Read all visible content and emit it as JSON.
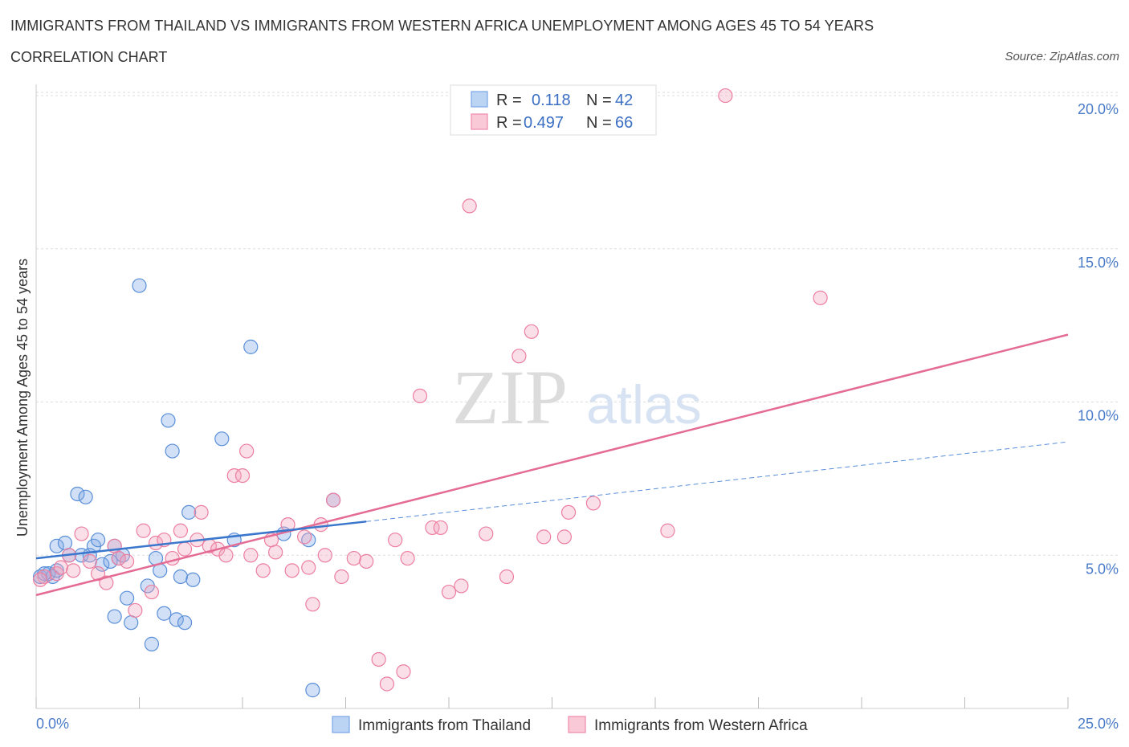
{
  "header": {
    "title": "IMMIGRANTS FROM THAILAND VS IMMIGRANTS FROM WESTERN AFRICA UNEMPLOYMENT AMONG AGES 45 TO 54 YEARS",
    "subtitle": "CORRELATION CHART",
    "source": "Source: ZipAtlas.com"
  },
  "watermark": {
    "zip": "ZIP",
    "atlas": "atlas"
  },
  "legend_top": {
    "rows": [
      {
        "r_label": "R =",
        "r_value": "0.118",
        "n_label": "N =",
        "n_value": "42",
        "color": "#7aa7e6"
      },
      {
        "r_label": "R =",
        "r_value": "0.497",
        "n_label": "N =",
        "n_value": "66",
        "color": "#f08aaa"
      }
    ]
  },
  "chart_data": {
    "type": "scatter",
    "title": "IMMIGRANTS FROM THAILAND VS IMMIGRANTS FROM WESTERN AFRICA UNEMPLOYMENT AMONG AGES 45 TO 54 YEARS",
    "subtitle": "CORRELATION CHART",
    "xlabel": "",
    "ylabel": "Unemployment Among Ages 45 to 54 years",
    "xlim": [
      0,
      25
    ],
    "ylim": [
      0,
      20.5
    ],
    "x_tick_labels": [
      "0.0%",
      "25.0%"
    ],
    "y_tick_labels": [
      "5.0%",
      "10.0%",
      "15.0%",
      "20.0%"
    ],
    "y_ticks": [
      5,
      10,
      15,
      20
    ],
    "grid": true,
    "legend_position": "top-center",
    "series": [
      {
        "name": "Immigrants from Thailand",
        "color": "#7aa7e6",
        "stroke": "#5a8fd8",
        "trend": {
          "x": [
            0,
            8
          ],
          "y": [
            4.9,
            6.1
          ],
          "extended_x": [
            8,
            25
          ],
          "extended_y": [
            6.1,
            8.7
          ]
        },
        "points": [
          [
            0.1,
            4.3
          ],
          [
            0.3,
            4.4
          ],
          [
            0.4,
            4.3
          ],
          [
            0.5,
            4.5
          ],
          [
            0.5,
            5.3
          ],
          [
            0.7,
            5.4
          ],
          [
            0.8,
            5.0
          ],
          [
            1.0,
            7.0
          ],
          [
            1.1,
            5.0
          ],
          [
            1.2,
            6.9
          ],
          [
            1.3,
            5.0
          ],
          [
            1.4,
            5.3
          ],
          [
            1.5,
            5.5
          ],
          [
            1.6,
            4.7
          ],
          [
            1.8,
            4.8
          ],
          [
            1.9,
            5.3
          ],
          [
            2.0,
            4.9
          ],
          [
            2.1,
            5.0
          ],
          [
            2.2,
            3.6
          ],
          [
            2.3,
            2.8
          ],
          [
            1.9,
            3.0
          ],
          [
            2.5,
            13.8
          ],
          [
            2.7,
            4.0
          ],
          [
            2.8,
            2.1
          ],
          [
            2.9,
            4.9
          ],
          [
            3.0,
            4.5
          ],
          [
            3.1,
            3.1
          ],
          [
            3.2,
            9.4
          ],
          [
            3.3,
            8.4
          ],
          [
            3.4,
            2.9
          ],
          [
            3.5,
            4.3
          ],
          [
            3.6,
            2.8
          ],
          [
            3.7,
            6.4
          ],
          [
            3.8,
            4.2
          ],
          [
            4.5,
            8.8
          ],
          [
            4.8,
            5.5
          ],
          [
            5.2,
            11.8
          ],
          [
            6.0,
            5.7
          ],
          [
            6.6,
            5.5
          ],
          [
            6.7,
            0.6
          ],
          [
            7.2,
            6.8
          ],
          [
            0.2,
            4.4
          ]
        ]
      },
      {
        "name": "Immigrants from Western Africa",
        "color": "#f4a3bd",
        "stroke": "#ec7fa0",
        "trend": {
          "x": [
            0,
            25
          ],
          "y": [
            3.7,
            12.2
          ]
        },
        "points": [
          [
            0.2,
            4.3
          ],
          [
            0.5,
            4.4
          ],
          [
            0.6,
            4.6
          ],
          [
            0.8,
            5.0
          ],
          [
            0.9,
            4.5
          ],
          [
            1.1,
            5.7
          ],
          [
            1.3,
            4.8
          ],
          [
            1.5,
            4.4
          ],
          [
            1.7,
            4.1
          ],
          [
            1.9,
            5.3
          ],
          [
            2.0,
            4.9
          ],
          [
            2.2,
            4.8
          ],
          [
            2.4,
            3.2
          ],
          [
            2.6,
            5.8
          ],
          [
            2.8,
            3.8
          ],
          [
            2.9,
            5.4
          ],
          [
            3.1,
            5.5
          ],
          [
            3.3,
            4.9
          ],
          [
            3.5,
            5.8
          ],
          [
            3.6,
            5.2
          ],
          [
            3.9,
            5.5
          ],
          [
            4.0,
            6.4
          ],
          [
            4.2,
            5.3
          ],
          [
            4.4,
            5.2
          ],
          [
            4.6,
            5.0
          ],
          [
            4.8,
            7.6
          ],
          [
            5.0,
            7.6
          ],
          [
            5.1,
            8.4
          ],
          [
            5.2,
            5.0
          ],
          [
            5.5,
            4.5
          ],
          [
            5.7,
            5.5
          ],
          [
            5.8,
            5.1
          ],
          [
            6.1,
            6.0
          ],
          [
            6.2,
            4.5
          ],
          [
            6.5,
            5.6
          ],
          [
            6.6,
            4.6
          ],
          [
            6.7,
            3.4
          ],
          [
            6.9,
            6.0
          ],
          [
            7.0,
            5.0
          ],
          [
            7.2,
            6.8
          ],
          [
            7.4,
            4.3
          ],
          [
            7.7,
            4.9
          ],
          [
            8.0,
            4.8
          ],
          [
            8.3,
            1.6
          ],
          [
            8.5,
            0.8
          ],
          [
            8.7,
            5.5
          ],
          [
            8.9,
            1.2
          ],
          [
            9.0,
            4.9
          ],
          [
            9.3,
            10.2
          ],
          [
            9.6,
            5.9
          ],
          [
            9.8,
            5.9
          ],
          [
            10.0,
            3.8
          ],
          [
            10.3,
            4.0
          ],
          [
            10.5,
            16.4
          ],
          [
            10.9,
            5.7
          ],
          [
            11.4,
            4.3
          ],
          [
            11.7,
            11.5
          ],
          [
            12.0,
            12.3
          ],
          [
            12.3,
            5.6
          ],
          [
            12.8,
            5.6
          ],
          [
            12.9,
            6.4
          ],
          [
            13.5,
            6.7
          ],
          [
            15.3,
            5.8
          ],
          [
            16.7,
            20.0
          ],
          [
            19.0,
            13.4
          ],
          [
            0.1,
            4.2
          ]
        ]
      }
    ]
  }
}
